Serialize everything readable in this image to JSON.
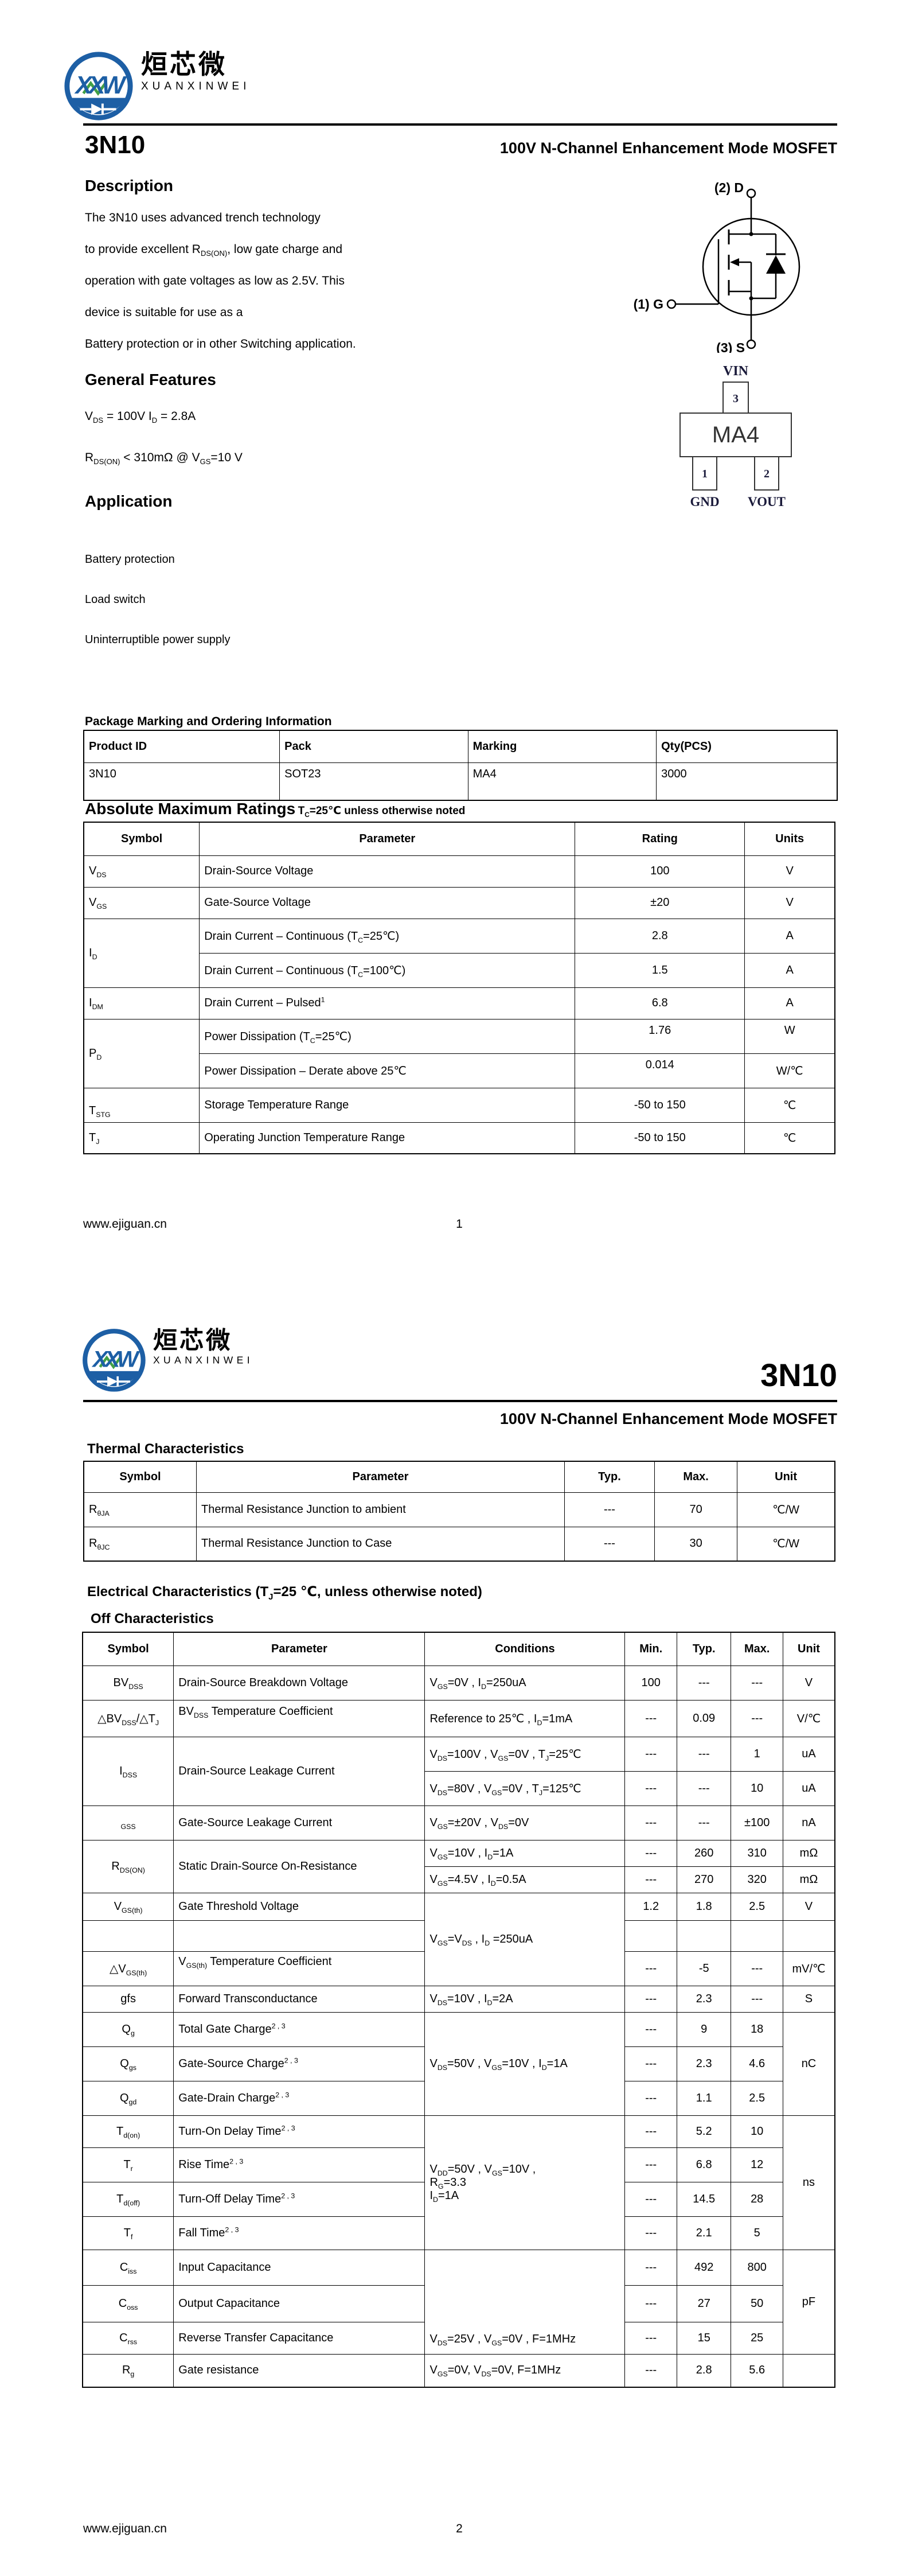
{
  "brand": {
    "abbr": "XXW",
    "cn": "烜芯微",
    "en": "XUANXINWEI"
  },
  "page1": {
    "part": "3N10",
    "subtitle": "100V N-Channel Enhancement Mode MOSFET",
    "desc_heading": "Description",
    "desc_lines": [
      "The 3N10   uses advanced trench technology",
      "to provide excellent R~DS(ON)~, low gate charge and",
      "operation with gate voltages as low as 2.5V. This",
      "device is suitable for use as a",
      "Battery protection or in other Switching application."
    ],
    "features_heading": "General Features",
    "features": [
      "V~DS~ = 100V  I~D~ = 2.8A",
      "R~DS(ON)~ < 310mΩ @ V~GS~=10 V"
    ],
    "application_heading": "Application",
    "applications": [
      "Battery protection",
      "Load switch",
      "Uninterruptible power supply"
    ],
    "mosfet_labels": {
      "drain": "(2) D",
      "gate": "(1) G",
      "source": "(3) S"
    },
    "package_labels": {
      "vin": "VIN",
      "pin3": "3",
      "marking": "MA4",
      "pin1": "1",
      "pin2": "2",
      "gnd": "GND",
      "vout": "VOUT"
    },
    "ordering_heading": "Package Marking and Ordering Information",
    "ordering": {
      "headers": [
        "Product ID",
        "Pack",
        "Marking",
        "Qty(PCS)"
      ],
      "row": [
        "3N10",
        "SOT23",
        "MA4",
        "3000"
      ]
    },
    "abs_heading": "Absolute Maximum Ratings",
    "abs_note": "T~C~=25℃ unless otherwise noted",
    "abs": {
      "headers": [
        "Symbol",
        "Parameter",
        "Rating",
        "Units"
      ],
      "vds": {
        "sym": "V~DS~",
        "param": "Drain-Source Voltage",
        "rating": "100",
        "units": "V"
      },
      "vgs": {
        "sym": "V~GS~",
        "param": "Gate-Source Voltage",
        "rating": "±20",
        "units": "V"
      },
      "id": {
        "sym": "I~D~",
        "param1": "Drain Current – Continuous (T~C~=25℃)",
        "rating1": "2.8",
        "units1": "A",
        "param2": "Drain Current – Continuous (T~C~=100℃)",
        "rating2": "1.5",
        "units2": "A"
      },
      "idm": {
        "sym": "I~DM~",
        "param": "Drain Current – Pulsed^1^",
        "rating": "6.8",
        "units": "A"
      },
      "pd": {
        "sym": "P~D~",
        "param1": "Power Dissipation (T~C~=25℃)",
        "rating1": "1.76",
        "units1": "W",
        "param2": "Power Dissipation – Derate above 25℃",
        "rating2": "0.014",
        "units2": "W/℃"
      },
      "tstg": {
        "sym": "T~STG~",
        "param": "Storage Temperature Range",
        "rating": "-50 to 150",
        "units": "℃"
      },
      "tj": {
        "sym": "T~J~",
        "param": "Operating Junction Temperature Range",
        "rating": "-50 to 150",
        "units": "℃"
      }
    },
    "footer": {
      "site": "www.ejiguan.cn",
      "page": "1"
    }
  },
  "page2": {
    "part": "3N10",
    "subtitle": "100V N-Channel Enhancement Mode MOSFET",
    "thermal_heading": "Thermal Characteristics",
    "thermal": {
      "headers": [
        "Symbol",
        "Parameter",
        "Typ.",
        "Max.",
        "Unit"
      ],
      "rja": {
        "sym": "R~θJA~",
        "param": "Thermal Resistance Junction to ambient",
        "typ": "---",
        "max": "70",
        "unit": "℃/W"
      },
      "rjc": {
        "sym": "R~θJC~",
        "param": "Thermal Resistance Junction to Case",
        "typ": "---",
        "max": "30",
        "unit": "℃/W"
      }
    },
    "elec_heading": "Electrical Characteristics (T~J~=25 ℃, unless otherwise noted)",
    "off_heading": "Off Characteristics",
    "elec": {
      "headers": [
        "Symbol",
        "Parameter",
        "Conditions",
        "Min.",
        "Typ.",
        "Max.",
        "Unit"
      ],
      "rows": {
        "bvdss": {
          "sym": "BV~DSS~",
          "param": "Drain-Source Breakdown Voltage",
          "cond": "V~GS~=0V , I~D~=250uA",
          "min": "100",
          "typ": "---",
          "max": "---",
          "unit": "V"
        },
        "dbvdss": {
          "sym": "△BV~DSS~/△T~J~",
          "param": "BV~DSS~ Temperature Coefficient",
          "cond": "Reference to 25℃ , I~D~=1mA",
          "min": "---",
          "typ": "0.09",
          "max": "---",
          "unit": "V/℃"
        },
        "idss": {
          "sym": "I~DSS~",
          "param": "Drain-Source Leakage Current",
          "cond1": "V~DS~=100V , V~GS~=0V , T~J~=25℃",
          "min1": "---",
          "typ1": "---",
          "max1": "1",
          "unit1": "uA",
          "cond2": "V~DS~=80V , V~GS~=0V , T~J~=125℃",
          "min2": "---",
          "typ2": "---",
          "max2": "10",
          "unit2": "uA"
        },
        "gss": {
          "sym": "~GSS~",
          "param": "Gate-Source Leakage Current",
          "cond": "V~GS~=±20V , V~DS~=0V",
          "min": "---",
          "typ": "---",
          "max": "±100",
          "unit": "nA"
        },
        "rdson": {
          "sym": "R~DS(ON)~",
          "param": "Static Drain-Source On-Resistance",
          "cond1": "V~GS~=10V , I~D~=1A",
          "min1": "---",
          "typ1": "260",
          "max1": "310",
          "unit1": "mΩ",
          "cond2": "V~GS~=4.5V , I~D~=0.5A",
          "min2": "---",
          "typ2": "270",
          "max2": "320",
          "unit2": "mΩ"
        },
        "vgsth": {
          "sym": "V~GS(th)~",
          "param": "Gate Threshold Voltage",
          "cond": "V~GS~=V~DS~ , I~D~ =250uA",
          "min": "1.2",
          "typ": "1.8",
          "max": "2.5",
          "unit": "V"
        },
        "dvgsth": {
          "sym": "△V~GS(th)~",
          "param": "V~GS(th)~ Temperature Coefficient",
          "min": "---",
          "typ": "-5",
          "max": "---",
          "unit": "mV/℃"
        },
        "gfs": {
          "sym": "gfs",
          "param": "Forward Transconductance",
          "cond": "V~DS~=10V , I~D~=2A",
          "min": "---",
          "typ": "2.3",
          "max": "---",
          "unit": "S"
        },
        "qg": {
          "sym": "Q~g~",
          "param": "Total Gate Charge^2 , 3^",
          "cond": "V~DS~=50V , V~GS~=10V , I~D~=1A",
          "min": "---",
          "typ": "9",
          "max": "18",
          "unit": "nC"
        },
        "qgs": {
          "sym": "Q~gs~",
          "param": "Gate-Source Charge^2 , 3^",
          "min": "---",
          "typ": "2.3",
          "max": "4.6"
        },
        "qgd": {
          "sym": "Q~gd~",
          "param": "Gate-Drain Charge^2 , 3^",
          "min": "---",
          "typ": "1.1",
          "max": "2.5"
        },
        "tdon": {
          "sym": "T~d(on)~",
          "param": "Turn-On Delay Time^2 , 3^",
          "cond": "V~DD~=50V , V~GS~=10V ,\nR~G~=3.3\nI~D~=1A",
          "min": "---",
          "typ": "5.2",
          "max": "10",
          "unit": "ns"
        },
        "tr": {
          "sym": "T~r~",
          "param": "Rise Time^2 , 3^",
          "min": "---",
          "typ": "6.8",
          "max": "12"
        },
        "tdoff": {
          "sym": "T~d(off)~",
          "param": "Turn-Off Delay Time^2 , 3^",
          "min": "---",
          "typ": "14.5",
          "max": "28"
        },
        "tf": {
          "sym": "T~f~",
          "param": "Fall Time^2 , 3^",
          "min": "---",
          "typ": "2.1",
          "max": "5"
        },
        "ciss": {
          "sym": "C~iss~",
          "param": "Input Capacitance",
          "cond": "V~DS~=25V , V~GS~=0V , F=1MHz",
          "min": "---",
          "typ": "492",
          "max": "800",
          "unit": "pF"
        },
        "coss": {
          "sym": "C~oss~",
          "param": "Output Capacitance",
          "min": "---",
          "typ": "27",
          "max": "50"
        },
        "crss": {
          "sym": "C~rss~",
          "param": "Reverse Transfer Capacitance",
          "min": "---",
          "typ": "15",
          "max": "25"
        },
        "rg": {
          "sym": "R~g~",
          "param": "Gate resistance",
          "cond": "V~GS~=0V, V~DS~=0V, F=1MHz",
          "min": "---",
          "typ": "2.8",
          "max": "5.6",
          "unit": ""
        }
      }
    },
    "footer": {
      "site": "www.ejiguan.cn",
      "page": "2"
    }
  },
  "colors": {
    "logo_blue": "#1d5fa5",
    "logo_green": "#42a046",
    "pkg_label": "#1a1a3a"
  }
}
